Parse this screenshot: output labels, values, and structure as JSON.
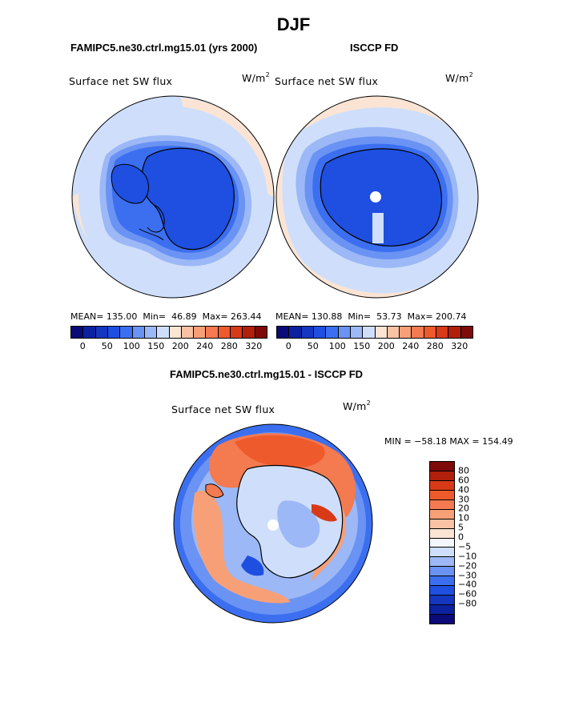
{
  "figure": {
    "season_title": "DJF",
    "panels": [
      {
        "case_title": "FAMIPC5.ne30.ctrl.mg15.01 (yrs 2000)",
        "variable": "Surface net SW flux",
        "units_base": "W/m",
        "units_exp": "2",
        "stats": "MEAN= 135.00  Min=  46.89  Max= 263.44"
      },
      {
        "case_title": "ISCCP FD",
        "variable": "Surface net SW flux",
        "units_base": "W/m",
        "units_exp": "2",
        "stats": "MEAN= 130.88  Min=  53.73  Max= 200.74"
      }
    ],
    "diff_panel": {
      "case_title": "FAMIPC5.ne30.ctrl.mg15.01 - ISCCP FD",
      "variable": "Surface net SW flux",
      "units_base": "W/m",
      "units_exp": "2",
      "minmax": "MIN = −58.18 MAX = 154.49"
    }
  },
  "colorbar_main": {
    "colors": [
      "#0a0a78",
      "#0c21a0",
      "#1536c0",
      "#1e4fe0",
      "#3c6ff0",
      "#6a93f3",
      "#9cb8f6",
      "#cfdffb",
      "#fbe4d4",
      "#f9c2a4",
      "#f7a078",
      "#f47a50",
      "#ef5a2c",
      "#d83a18",
      "#b0200a",
      "#7e0a0a"
    ],
    "ticks": [
      "0",
      "50",
      "100",
      "150",
      "200",
      "240",
      "280",
      "320"
    ]
  },
  "colorbar_diff": {
    "colors": [
      "#7e0a0a",
      "#b0200a",
      "#d83a18",
      "#ef5a2c",
      "#f47a50",
      "#f7a078",
      "#f9c2a4",
      "#fbe4d4",
      "#f4f7ff",
      "#cfdffb",
      "#9cb8f6",
      "#6a93f3",
      "#3c6ff0",
      "#1e4fe0",
      "#1536c0",
      "#0c21a0",
      "#0a0a78"
    ],
    "ticks": [
      "80",
      "60",
      "40",
      "30",
      "20",
      "10",
      "5",
      "0",
      "−5",
      "−10",
      "−20",
      "−30",
      "−40",
      "−60",
      "−80"
    ]
  }
}
